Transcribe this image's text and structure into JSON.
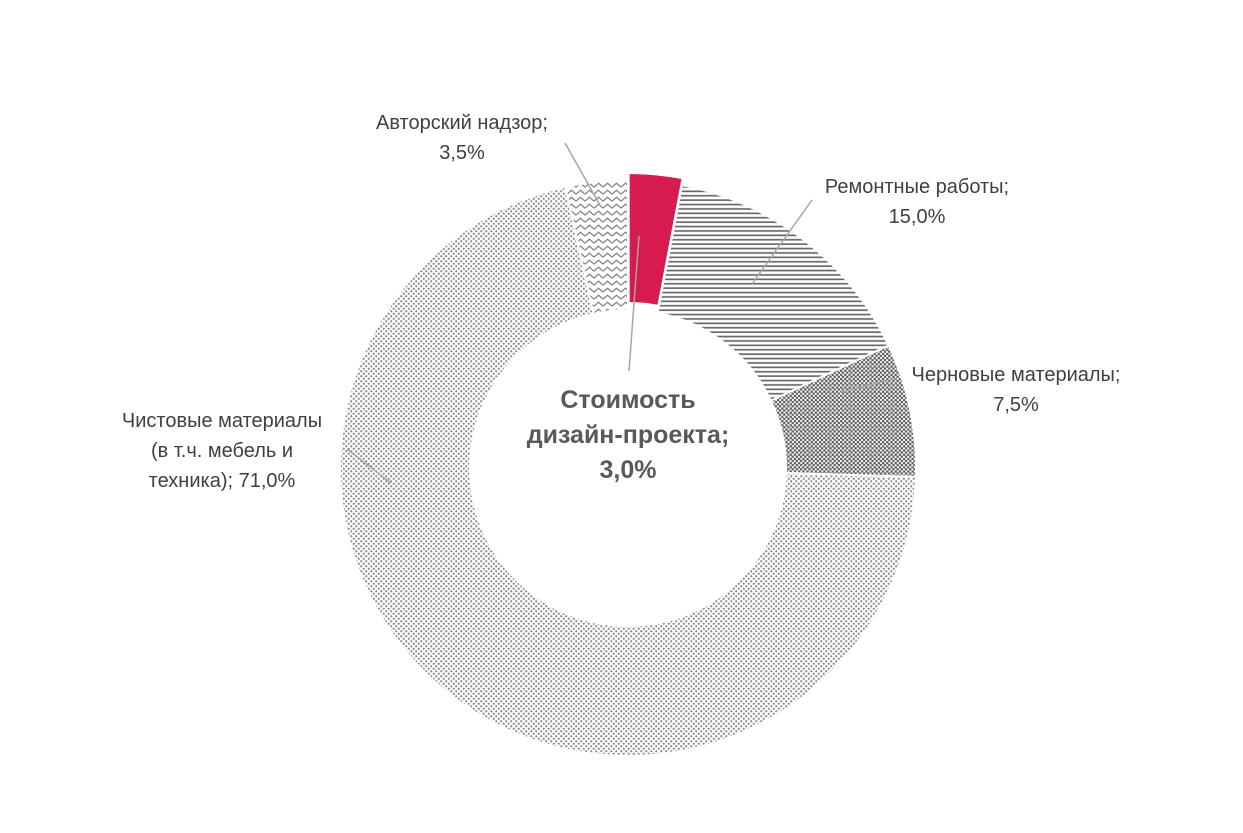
{
  "chart_data": {
    "type": "pie",
    "subtype": "donut",
    "title": "",
    "legend": "none",
    "data_labels": "callouts",
    "start_angle_deg": 0,
    "direction": "clockwise",
    "total": 100.0,
    "center_label": {
      "name": "Стоимость дизайн-проекта",
      "value": 3.0,
      "lines": [
        "Стоимость",
        "дизайн-проекта;",
        "3,0%"
      ]
    },
    "segments": [
      {
        "name": "Стоимость дизайн-проекта",
        "value": 3.0,
        "fill": "solid",
        "color": "#d81b4f",
        "exploded": true
      },
      {
        "name": "Ремонтные работы",
        "value": 15.0,
        "fill": "hlines",
        "color": "#686868",
        "exploded": false
      },
      {
        "name": "Черновые материалы",
        "value": 7.5,
        "fill": "darkdots",
        "color": "#5e5e5e",
        "exploded": false
      },
      {
        "name": "Чистовые материалы (в т.ч. мебель и техника)",
        "value": 71.0,
        "fill": "dots",
        "color": "#8c8c8c",
        "exploded": false
      },
      {
        "name": "Авторский надзор",
        "value": 3.5,
        "fill": "zigzag",
        "color": "#808080",
        "exploded": false
      }
    ]
  },
  "callouts": {
    "author": {
      "lines": [
        "Авторский надзор;",
        "3,5%"
      ]
    },
    "repair": {
      "lines": [
        "Ремонтные работы;",
        "15,0%"
      ]
    },
    "rough": {
      "lines": [
        "Черновые материалы;",
        "7,5%"
      ]
    },
    "finish": {
      "lines": [
        "Чистовые материалы",
        "(в т.ч. мебель и",
        "техника); 71,0%"
      ]
    },
    "center": {
      "lines": [
        "Стоимость",
        "дизайн-проекта;",
        "3,0%"
      ]
    }
  },
  "colors": {
    "accent": "#d81b4f",
    "label_text": "#404040",
    "center_text": "#595959",
    "leader_line": "#a6a6a6",
    "background": "#ffffff"
  }
}
